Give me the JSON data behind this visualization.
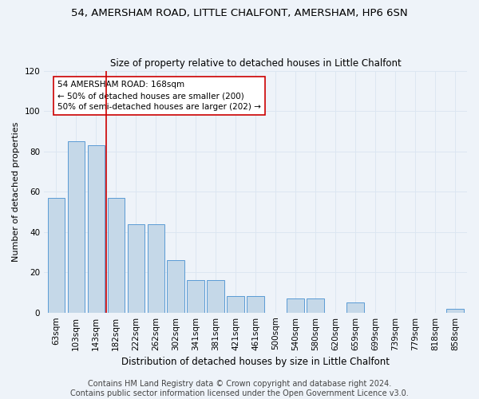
{
  "title": "54, AMERSHAM ROAD, LITTLE CHALFONT, AMERSHAM, HP6 6SN",
  "subtitle": "Size of property relative to detached houses in Little Chalfont",
  "xlabel": "Distribution of detached houses by size in Little Chalfont",
  "ylabel": "Number of detached properties",
  "categories": [
    "63sqm",
    "103sqm",
    "143sqm",
    "182sqm",
    "222sqm",
    "262sqm",
    "302sqm",
    "341sqm",
    "381sqm",
    "421sqm",
    "461sqm",
    "500sqm",
    "540sqm",
    "580sqm",
    "620sqm",
    "659sqm",
    "699sqm",
    "739sqm",
    "779sqm",
    "818sqm",
    "858sqm"
  ],
  "values": [
    57,
    85,
    83,
    57,
    44,
    44,
    26,
    16,
    16,
    8,
    8,
    0,
    7,
    7,
    0,
    5,
    0,
    0,
    0,
    0,
    2
  ],
  "bar_color": "#c5d8e8",
  "bar_edge_color": "#5b9bd5",
  "vline_color": "#cc0000",
  "annotation_text": "54 AMERSHAM ROAD: 168sqm\n← 50% of detached houses are smaller (200)\n50% of semi-detached houses are larger (202) →",
  "annotation_box_color": "#ffffff",
  "annotation_box_edge": "#cc0000",
  "ylim": [
    0,
    120
  ],
  "yticks": [
    0,
    20,
    40,
    60,
    80,
    100,
    120
  ],
  "grid_color": "#dce6f1",
  "bg_color": "#eef3f9",
  "footer": "Contains HM Land Registry data © Crown copyright and database right 2024.\nContains public sector information licensed under the Open Government Licence v3.0.",
  "title_fontsize": 9.5,
  "subtitle_fontsize": 8.5,
  "footer_fontsize": 7,
  "axis_fontsize": 7.5,
  "ylabel_fontsize": 8,
  "xlabel_fontsize": 8.5
}
